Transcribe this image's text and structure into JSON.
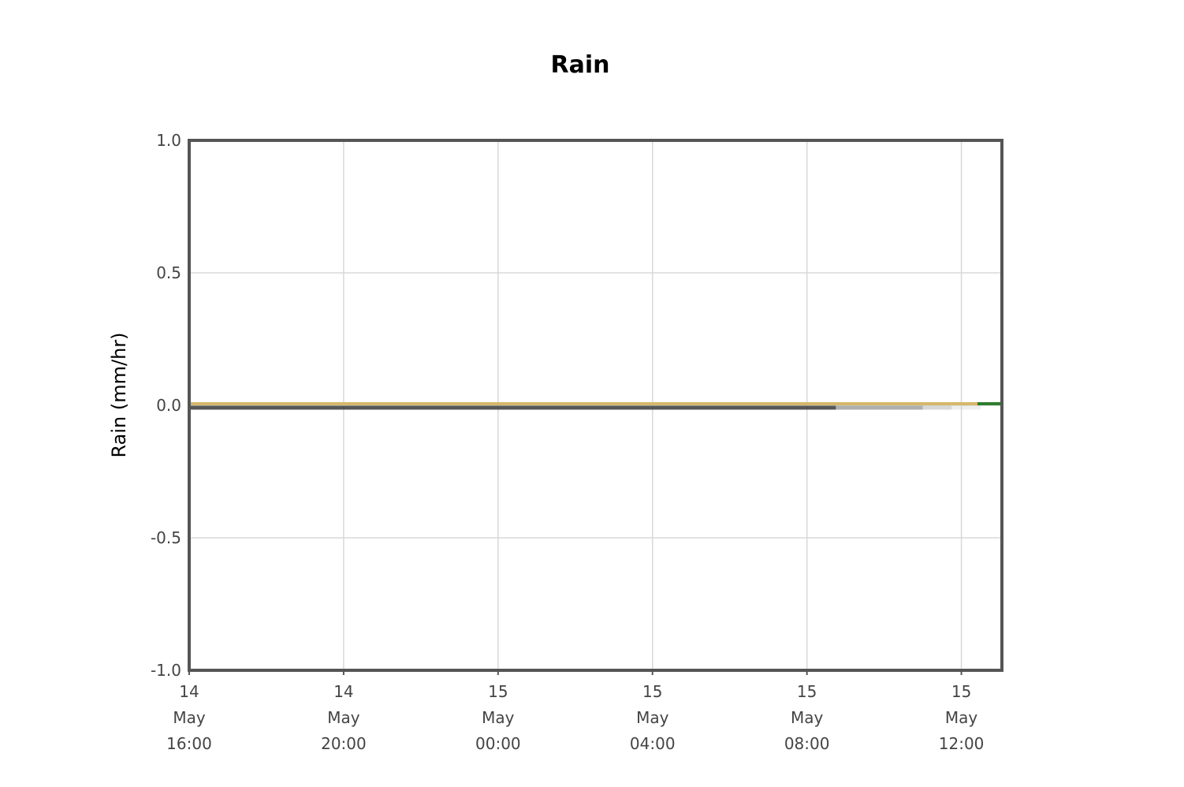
{
  "chart_data": {
    "type": "line",
    "title": "Rain",
    "ylabel": "Rain (mm/hr)",
    "xlabel": "",
    "ylim": [
      -1.0,
      1.0
    ],
    "xlim": [
      "2024-05-14T16:00",
      "2024-05-15T13:03"
    ],
    "grid": true,
    "y_ticks": [
      {
        "value": 1.0,
        "label": "1.0"
      },
      {
        "value": 0.5,
        "label": "0.5"
      },
      {
        "value": 0.0,
        "label": "0.0"
      },
      {
        "value": -0.5,
        "label": "-0.5"
      },
      {
        "value": -1.0,
        "label": "-1.0"
      }
    ],
    "x_ticks": [
      {
        "value": "2024-05-14T16:00",
        "label": [
          "14",
          "May",
          "16:00"
        ]
      },
      {
        "value": "2024-05-14T20:00",
        "label": [
          "14",
          "May",
          "20:00"
        ]
      },
      {
        "value": "2024-05-15T00:00",
        "label": [
          "15",
          "May",
          "00:00"
        ]
      },
      {
        "value": "2024-05-15T04:00",
        "label": [
          "15",
          "May",
          "04:00"
        ]
      },
      {
        "value": "2024-05-15T08:00",
        "label": [
          "15",
          "May",
          "08:00"
        ]
      },
      {
        "value": "2024-05-15T12:00",
        "label": [
          "15",
          "May",
          "12:00"
        ]
      }
    ],
    "series": [
      {
        "color": "#3a3a3a",
        "opacity": 0.85,
        "x": [
          "2024-05-14T16:00",
          "2024-05-15T08:45"
        ],
        "y": [
          0.0,
          0.0
        ]
      },
      {
        "color": "#7a7a7a",
        "opacity": 0.6,
        "x": [
          "2024-05-15T08:45",
          "2024-05-15T11:00"
        ],
        "y": [
          0.0,
          0.0
        ]
      },
      {
        "color": "#a8a8a8",
        "opacity": 0.45,
        "x": [
          "2024-05-15T11:00",
          "2024-05-15T11:45"
        ],
        "y": [
          0.0,
          0.0
        ]
      },
      {
        "color": "#cfcfcf",
        "opacity": 0.35,
        "x": [
          "2024-05-15T11:45",
          "2024-05-15T12:30"
        ],
        "y": [
          0.0,
          0.0
        ]
      },
      {
        "color": "#d4b86a",
        "opacity": 1.0,
        "x": [
          "2024-05-14T16:00",
          "2024-05-15T12:25"
        ],
        "y": [
          0.0,
          0.0
        ]
      },
      {
        "color": "#2e7d2e",
        "opacity": 1.0,
        "x": [
          "2024-05-15T12:25",
          "2024-05-15T13:03"
        ],
        "y": [
          0.0,
          0.0
        ]
      }
    ]
  }
}
